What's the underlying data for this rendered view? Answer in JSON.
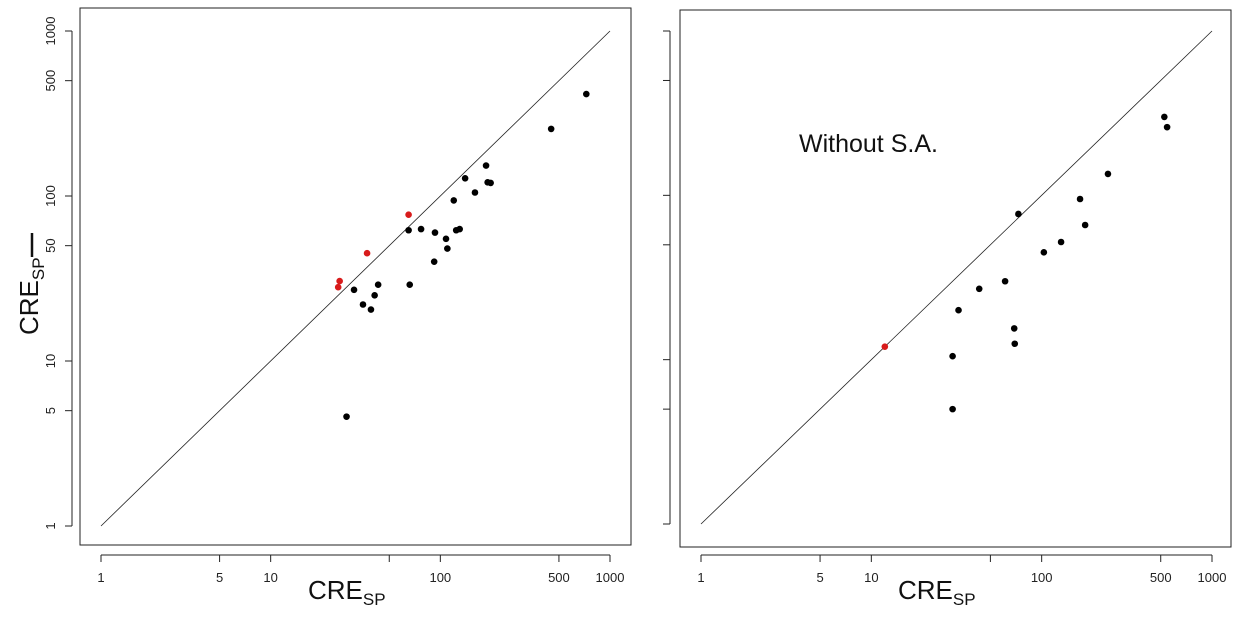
{
  "colors": {
    "point": "#000000",
    "highlight": "#d81b1b",
    "line": "#222222"
  },
  "chart_data": [
    {
      "type": "scatter",
      "title": "",
      "xlabel": "CRE",
      "xlabel_sub": "SP",
      "ylabel": "CRE",
      "ylabel_sub": "SP",
      "annotation": "",
      "log_x": true,
      "log_y": true,
      "xlim": [
        1,
        1000
      ],
      "ylim": [
        1,
        1000
      ],
      "x_ticks": [
        1,
        5,
        10,
        50,
        100,
        500,
        1000
      ],
      "x_tick_labels": [
        "1",
        "5",
        "10",
        "",
        "100",
        "500",
        "1000"
      ],
      "y_ticks": [
        1,
        5,
        10,
        50,
        100,
        500,
        1000
      ],
      "y_tick_labels": [
        "1",
        "5",
        "10",
        "50",
        "100",
        "500",
        "1000"
      ],
      "reference_line": "y = x",
      "grid": false,
      "points": [
        {
          "x": 28,
          "y": 4.6,
          "highlight": false
        },
        {
          "x": 31,
          "y": 27,
          "highlight": false
        },
        {
          "x": 35,
          "y": 22,
          "highlight": false
        },
        {
          "x": 39,
          "y": 20.5,
          "highlight": false
        },
        {
          "x": 41,
          "y": 25,
          "highlight": false
        },
        {
          "x": 43,
          "y": 29,
          "highlight": false
        },
        {
          "x": 65,
          "y": 62,
          "highlight": false
        },
        {
          "x": 66,
          "y": 29,
          "highlight": false
        },
        {
          "x": 77,
          "y": 63,
          "highlight": false
        },
        {
          "x": 92,
          "y": 40,
          "highlight": false
        },
        {
          "x": 93,
          "y": 60,
          "highlight": false
        },
        {
          "x": 108,
          "y": 55,
          "highlight": false
        },
        {
          "x": 110,
          "y": 48,
          "highlight": false
        },
        {
          "x": 120,
          "y": 94,
          "highlight": false
        },
        {
          "x": 124,
          "y": 62,
          "highlight": false
        },
        {
          "x": 130,
          "y": 63,
          "highlight": false
        },
        {
          "x": 140,
          "y": 128,
          "highlight": false
        },
        {
          "x": 160,
          "y": 105,
          "highlight": false
        },
        {
          "x": 186,
          "y": 153,
          "highlight": false
        },
        {
          "x": 190,
          "y": 121,
          "highlight": false
        },
        {
          "x": 198,
          "y": 120,
          "highlight": false
        },
        {
          "x": 450,
          "y": 255,
          "highlight": false
        },
        {
          "x": 725,
          "y": 415,
          "highlight": false
        },
        {
          "x": 25,
          "y": 28,
          "highlight": true
        },
        {
          "x": 25.5,
          "y": 30.5,
          "highlight": true
        },
        {
          "x": 37,
          "y": 45,
          "highlight": true
        },
        {
          "x": 65,
          "y": 77,
          "highlight": true
        }
      ]
    },
    {
      "type": "scatter",
      "title": "",
      "xlabel": "CRE",
      "xlabel_sub": "SP",
      "ylabel": "",
      "ylabel_sub": "",
      "annotation": "Without S.A.",
      "log_x": true,
      "log_y": true,
      "xlim": [
        1,
        1000
      ],
      "ylim": [
        1,
        1000
      ],
      "x_ticks": [
        1,
        5,
        10,
        50,
        100,
        500,
        1000
      ],
      "x_tick_labels": [
        "1",
        "5",
        "10",
        "",
        "100",
        "500",
        "1000"
      ],
      "y_ticks": [
        1,
        5,
        10,
        50,
        100,
        500,
        1000
      ],
      "y_tick_labels": [
        "",
        "",
        "",
        "",
        "",
        "",
        ""
      ],
      "reference_line": "y = x",
      "grid": false,
      "points": [
        {
          "x": 30,
          "y": 5,
          "highlight": false
        },
        {
          "x": 30,
          "y": 10.5,
          "highlight": false
        },
        {
          "x": 32.5,
          "y": 20,
          "highlight": false
        },
        {
          "x": 43,
          "y": 27,
          "highlight": false
        },
        {
          "x": 61,
          "y": 30,
          "highlight": false
        },
        {
          "x": 69,
          "y": 15.5,
          "highlight": false
        },
        {
          "x": 69.5,
          "y": 12.5,
          "highlight": false
        },
        {
          "x": 73,
          "y": 77,
          "highlight": false
        },
        {
          "x": 103,
          "y": 45,
          "highlight": false
        },
        {
          "x": 130,
          "y": 52,
          "highlight": false
        },
        {
          "x": 168,
          "y": 95,
          "highlight": false
        },
        {
          "x": 180,
          "y": 66,
          "highlight": false
        },
        {
          "x": 245,
          "y": 135,
          "highlight": false
        },
        {
          "x": 525,
          "y": 300,
          "highlight": false
        },
        {
          "x": 545,
          "y": 260,
          "highlight": false
        },
        {
          "x": 12,
          "y": 12,
          "highlight": true
        }
      ]
    }
  ]
}
